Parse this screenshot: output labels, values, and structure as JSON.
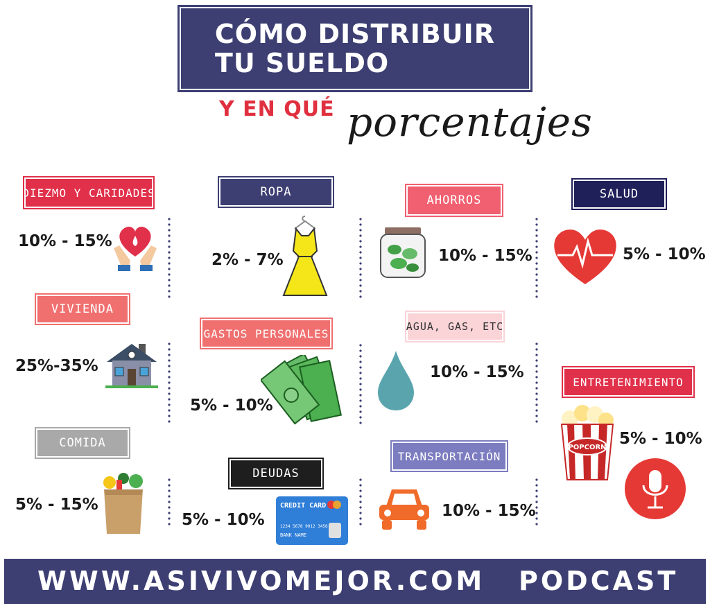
{
  "header": {
    "title": "CÓMO DISTRIBUIR\nTU SUELDO",
    "subtitle_a": "Y EN QUÉ",
    "subtitle_b": "porcentajes"
  },
  "colors": {
    "navy": "#3d3f73",
    "crimson": "#e0304a",
    "salmon": "#f07070",
    "gray": "#a9a9a9",
    "black": "#1e1e1e",
    "pink": "#fbd4d8",
    "violet": "#7c7cc0",
    "darknavy": "#1f1f5a"
  },
  "categories": {
    "diezmo": {
      "label": "DIEZMO Y CARIDADES",
      "pct": "10% - 15%",
      "icon": "heart-hands-icon"
    },
    "vivienda": {
      "label": "VIVIENDA",
      "pct": "25%-35%",
      "icon": "house-icon"
    },
    "comida": {
      "label": "COMIDA",
      "pct": "5% - 15%",
      "icon": "grocery-bag-icon"
    },
    "ropa": {
      "label": "ROPA",
      "pct": "2% - 7%",
      "icon": "dress-icon"
    },
    "gastos": {
      "label": "GASTOS PERSONALES",
      "pct": "5% - 10%",
      "icon": "money-bills-icon"
    },
    "deudas": {
      "label": "DEUDAS",
      "pct": "5% - 10%",
      "icon": "credit-card-icon"
    },
    "ahorros": {
      "label": "AHORROS",
      "pct": "10% - 15%",
      "icon": "money-jar-icon"
    },
    "agua": {
      "label": "AGUA, GAS, ETC",
      "pct": "10% - 15%",
      "icon": "water-drop-icon"
    },
    "transporte": {
      "label": "TRANSPORTACIÓN",
      "pct": "10% - 15%",
      "icon": "car-icon"
    },
    "salud": {
      "label": "SALUD",
      "pct": "5% - 10%",
      "icon": "heartbeat-icon"
    },
    "entretenimiento": {
      "label": "ENTRETENIMIENTO",
      "pct": "5% - 10%",
      "icon": "popcorn-icon"
    }
  },
  "card": {
    "title": "CREDIT CARD",
    "number": "1234 5678 9012 3456",
    "name": "BANK NAME"
  },
  "popcorn_text": "POPCORN",
  "footer": {
    "url": "WWW.ASIVIVOMEJOR.COM",
    "podcast": "PODCAST"
  },
  "mic_icon": "microphone-icon"
}
